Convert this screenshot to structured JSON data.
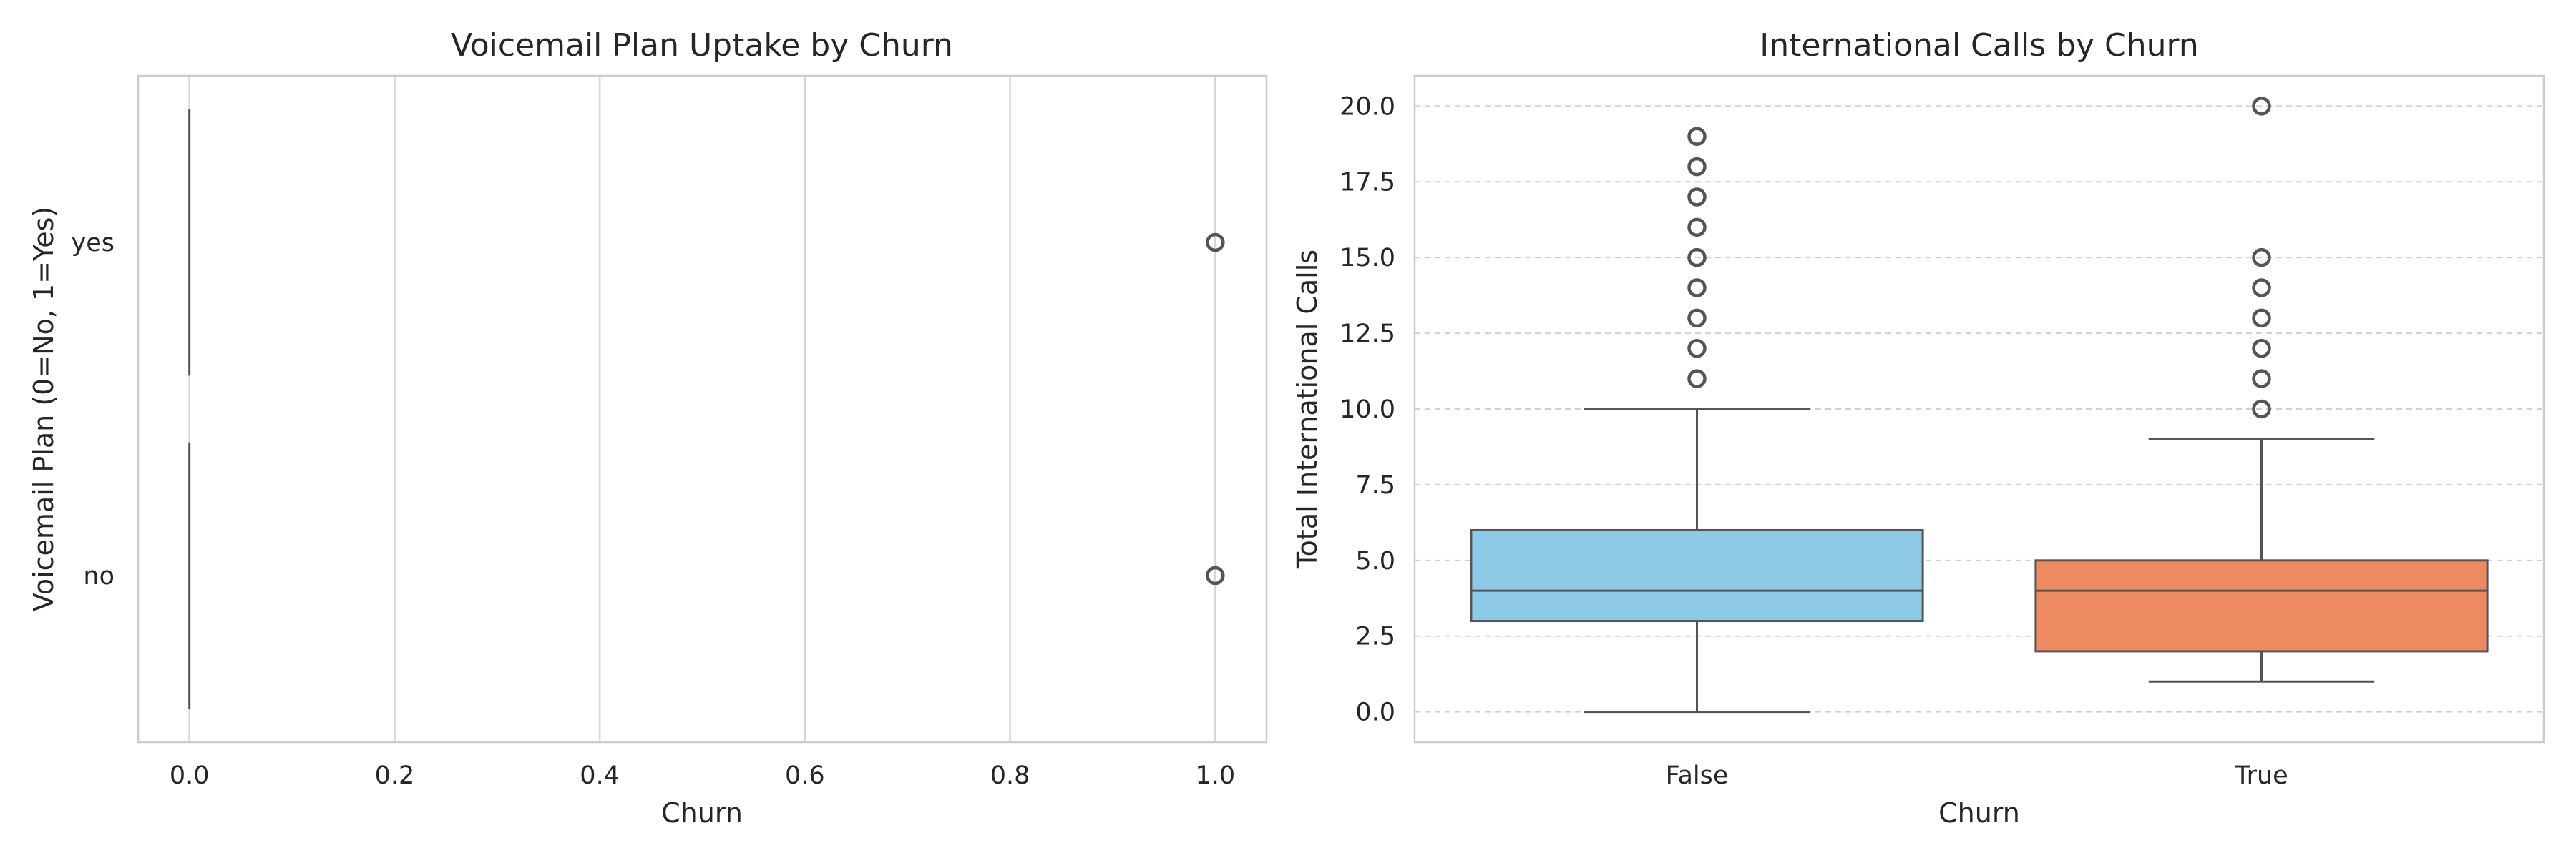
{
  "chart_data": [
    {
      "type": "box",
      "orientation": "horizontal",
      "title": "Voicemail Plan Uptake by Churn",
      "xlabel": "Churn",
      "ylabel": "Voicemail Plan (0=No, 1=Yes)",
      "xlim": [
        -0.05,
        1.05
      ],
      "xticks": [
        "0.0",
        "0.2",
        "0.4",
        "0.6",
        "0.8",
        "1.0"
      ],
      "grid": "vertical",
      "categories": [
        "yes",
        "no"
      ],
      "boxes": [
        {
          "category": "yes",
          "q1": 0,
          "median": 0,
          "q3": 0,
          "whisker_low": 0,
          "whisker_high": 0,
          "outliers": [
            1
          ]
        },
        {
          "category": "no",
          "q1": 0,
          "median": 0,
          "q3": 0,
          "whisker_low": 0,
          "whisker_high": 0,
          "outliers": [
            1
          ]
        }
      ]
    },
    {
      "type": "box",
      "orientation": "vertical",
      "title": "International Calls by Churn",
      "xlabel": "Churn",
      "ylabel": "Total International Calls",
      "ylim": [
        -1,
        21
      ],
      "yticks": [
        "0.0",
        "2.5",
        "5.0",
        "7.5",
        "10.0",
        "12.5",
        "15.0",
        "17.5",
        "20.0"
      ],
      "grid": "horizontal-dashed",
      "categories": [
        "False",
        "True"
      ],
      "boxes": [
        {
          "category": "False",
          "color": "#8ecae6",
          "q1": 3,
          "median": 4,
          "q3": 6,
          "whisker_low": 0,
          "whisker_high": 10,
          "outliers": [
            11,
            12,
            13,
            14,
            15,
            16,
            17,
            18,
            19
          ]
        },
        {
          "category": "True",
          "color": "#ee8a62",
          "q1": 2,
          "median": 4,
          "q3": 5,
          "whisker_low": 1,
          "whisker_high": 9,
          "outliers": [
            10,
            11,
            12,
            13,
            14,
            15,
            20
          ]
        }
      ]
    }
  ]
}
